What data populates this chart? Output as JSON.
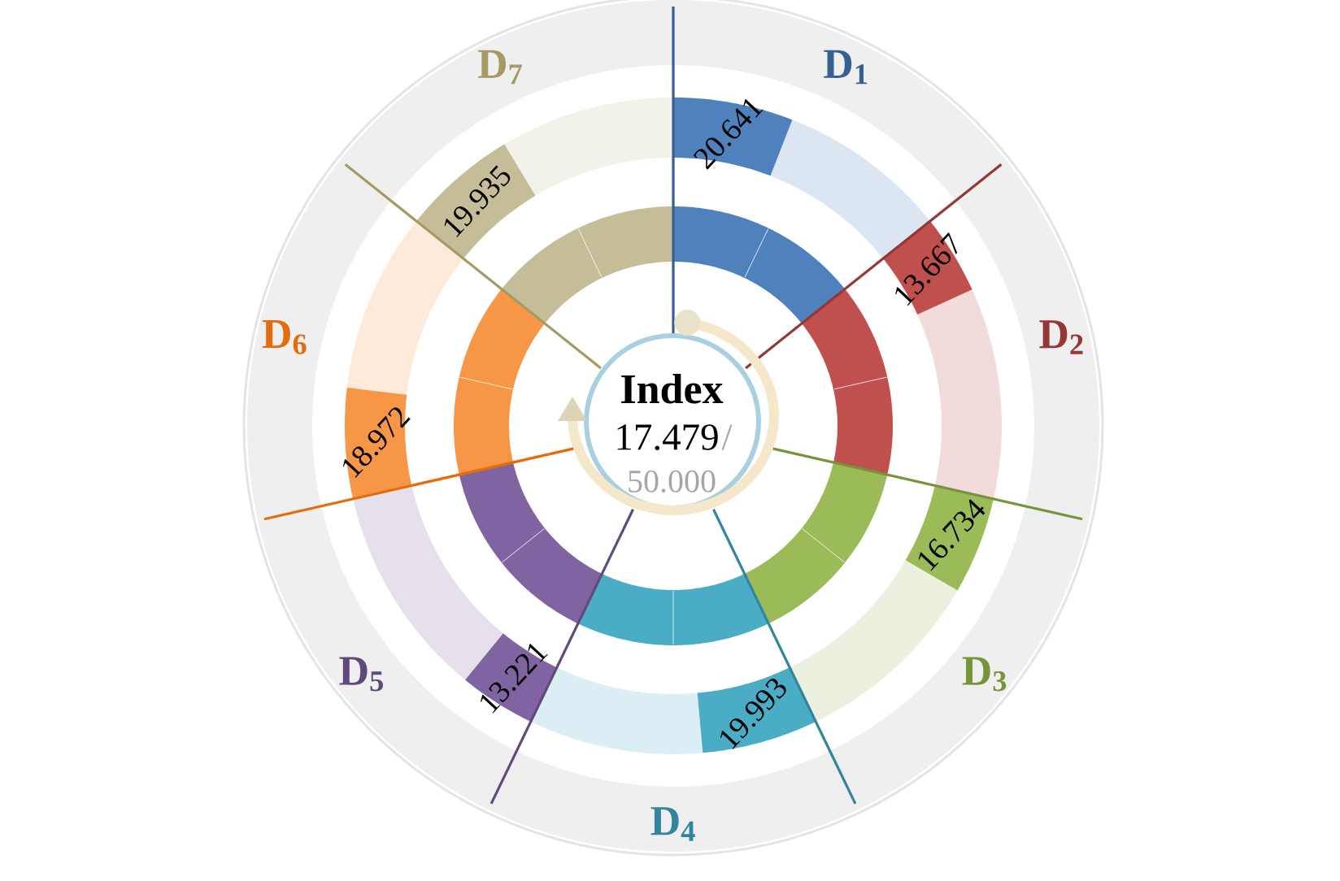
{
  "chart_data": [
    {
      "type": "other",
      "categories": [
        "D$_{1}$",
        "D$_{2}$",
        "D$_{3}$",
        "D$_{4}$",
        "D$_{5}$",
        "D$_{6}$",
        "D$_{7}$"
      ],
      "values": [
        20.641,
        13.667,
        16.734,
        19.993,
        13.221,
        18.972,
        19.935
      ],
      "colors": [
        "#4f81bd",
        "#c0504d",
        "#9bbb59",
        "#4bacc6",
        "#8064a2",
        "#f79646",
        "#c4bd97"
      ],
      "data_labels": true
    },
    {
      "type": "other",
      "title": "Index",
      "values": [
        17.479,
        50
      ],
      "value_labels": [
        "17.479",
        "50.000"
      ],
      "annotations": [
        "/"
      ]
    }
  ]
}
